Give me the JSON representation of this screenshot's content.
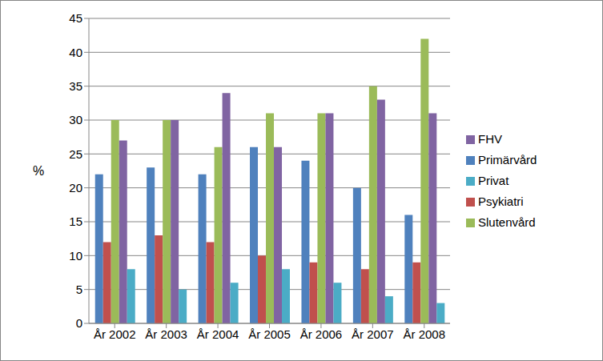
{
  "chart_data": {
    "type": "bar",
    "y_label": "%",
    "categories": [
      "År 2002",
      "År 2003",
      "År 2004",
      "År 2005",
      "År 2006",
      "År 2007",
      "År 2008"
    ],
    "series": [
      {
        "name": "Primärvård",
        "color": "#4f81bd",
        "values": [
          22,
          23,
          22,
          26,
          24,
          20,
          16
        ]
      },
      {
        "name": "Psykiatri",
        "color": "#c0504d",
        "values": [
          12,
          13,
          12,
          10,
          9,
          8,
          9
        ]
      },
      {
        "name": "Slutenvård",
        "color": "#9bbb59",
        "values": [
          30,
          30,
          26,
          31,
          31,
          35,
          42
        ]
      },
      {
        "name": "FHV",
        "color": "#8064a2",
        "values": [
          27,
          30,
          34,
          26,
          31,
          33,
          31
        ]
      },
      {
        "name": "Privat",
        "color": "#4bacc6",
        "values": [
          8,
          5,
          6,
          8,
          6,
          4,
          3
        ]
      }
    ],
    "ylim": [
      0,
      45
    ],
    "yticks": [
      0,
      5,
      10,
      15,
      20,
      25,
      30,
      35,
      40,
      45
    ],
    "grid": true,
    "legend": "right"
  }
}
